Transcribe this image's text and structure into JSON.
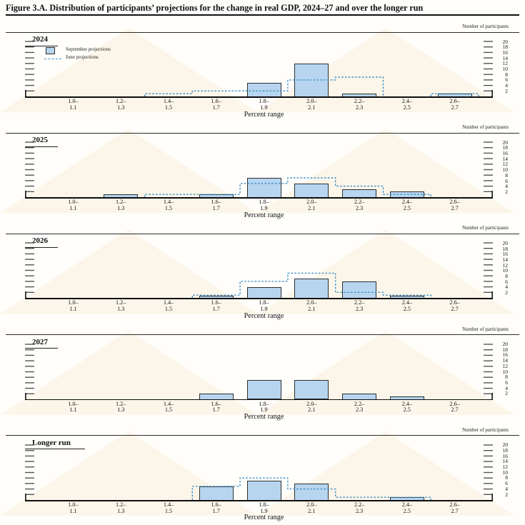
{
  "title": "Figure 3.A. Distribution of participants’ projections for the change in real GDP, 2024–27 and over the longer run",
  "axis": {
    "right_axis_label": "Number of participants",
    "x_axis_label": "Percent range",
    "y_ticks": [
      2,
      4,
      6,
      8,
      10,
      12,
      14,
      16,
      18,
      20
    ],
    "bins": [
      {
        "line1": "1.0–",
        "line2": "1.1"
      },
      {
        "line1": "1.2–",
        "line2": "1.3"
      },
      {
        "line1": "1.4–",
        "line2": "1.5"
      },
      {
        "line1": "1.6–",
        "line2": "1.7"
      },
      {
        "line1": "1.8–",
        "line2": "1.9"
      },
      {
        "line1": "2.0–",
        "line2": "2.1"
      },
      {
        "line1": "2.2–",
        "line2": "2.3"
      },
      {
        "line1": "2.4–",
        "line2": "2.5"
      },
      {
        "line1": "2.6–",
        "line2": "2.7"
      }
    ]
  },
  "legend": {
    "september_label": "September projections",
    "june_label": "June projections"
  },
  "colors": {
    "bar_fill": "#b7d5ef",
    "bar_border": "#2f2f2f",
    "june_line": "#4090c8",
    "tick": "#555555",
    "rule": "#2b2b2b",
    "watermark": "#f7efdb"
  },
  "chart_data": [
    {
      "type": "bar",
      "title": "2024",
      "categories": [
        "1.0–1.1",
        "1.2–1.3",
        "1.4–1.5",
        "1.6–1.7",
        "1.8–1.9",
        "2.0–2.1",
        "2.2–2.3",
        "2.4–2.5",
        "2.6–2.7"
      ],
      "series": [
        {
          "name": "September projections",
          "style": "bar",
          "values": [
            0,
            0,
            0,
            0,
            5,
            12,
            1,
            0,
            1
          ]
        },
        {
          "name": "June projections",
          "style": "dashed-step",
          "values": [
            0,
            0,
            1,
            2,
            2,
            6,
            7,
            0,
            1
          ]
        }
      ],
      "ylim": [
        0,
        20
      ],
      "ylabel": "Number of participants",
      "xlabel": "Percent range"
    },
    {
      "type": "bar",
      "title": "2025",
      "categories": [
        "1.0–1.1",
        "1.2–1.3",
        "1.4–1.5",
        "1.6–1.7",
        "1.8–1.9",
        "2.0–2.1",
        "2.2–2.3",
        "2.4–2.5",
        "2.6–2.7"
      ],
      "series": [
        {
          "name": "September projections",
          "style": "bar",
          "values": [
            0,
            1,
            0,
            1,
            7,
            5,
            3,
            2,
            0
          ]
        },
        {
          "name": "June projections",
          "style": "dashed-step",
          "values": [
            0,
            0,
            1,
            1,
            5,
            7,
            4,
            1,
            0
          ]
        }
      ],
      "ylim": [
        0,
        20
      ],
      "ylabel": "Number of participants",
      "xlabel": "Percent range"
    },
    {
      "type": "bar",
      "title": "2026",
      "categories": [
        "1.0–1.1",
        "1.2–1.3",
        "1.4–1.5",
        "1.6–1.7",
        "1.8–1.9",
        "2.0–2.1",
        "2.2–2.3",
        "2.4–2.5",
        "2.6–2.7"
      ],
      "series": [
        {
          "name": "September projections",
          "style": "bar",
          "values": [
            0,
            0,
            0,
            1,
            4,
            7,
            6,
            1,
            0
          ]
        },
        {
          "name": "June projections",
          "style": "dashed-step",
          "values": [
            0,
            0,
            0,
            1,
            6,
            9,
            2,
            1,
            0
          ]
        }
      ],
      "ylim": [
        0,
        20
      ],
      "ylabel": "Number of participants",
      "xlabel": "Percent range"
    },
    {
      "type": "bar",
      "title": "2027",
      "categories": [
        "1.0–1.1",
        "1.2–1.3",
        "1.4–1.5",
        "1.6–1.7",
        "1.8–1.9",
        "2.0–2.1",
        "2.2–2.3",
        "2.4–2.5",
        "2.6–2.7"
      ],
      "series": [
        {
          "name": "September projections",
          "style": "bar",
          "values": [
            0,
            0,
            0,
            2,
            7,
            7,
            2,
            1,
            0
          ]
        }
      ],
      "ylim": [
        0,
        20
      ],
      "ylabel": "Number of participants",
      "xlabel": "Percent range"
    },
    {
      "type": "bar",
      "title": "Longer run",
      "categories": [
        "1.0–1.1",
        "1.2–1.3",
        "1.4–1.5",
        "1.6–1.7",
        "1.8–1.9",
        "2.0–2.1",
        "2.2–2.3",
        "2.4–2.5",
        "2.6–2.7"
      ],
      "series": [
        {
          "name": "September projections",
          "style": "bar",
          "values": [
            0,
            0,
            0,
            5,
            7,
            6,
            0,
            1,
            0
          ]
        },
        {
          "name": "June projections",
          "style": "dashed-step",
          "values": [
            0,
            0,
            0,
            5,
            8,
            4,
            1,
            1,
            0
          ]
        }
      ],
      "ylim": [
        0,
        20
      ],
      "ylabel": "Number of participants",
      "xlabel": "Percent range"
    }
  ]
}
